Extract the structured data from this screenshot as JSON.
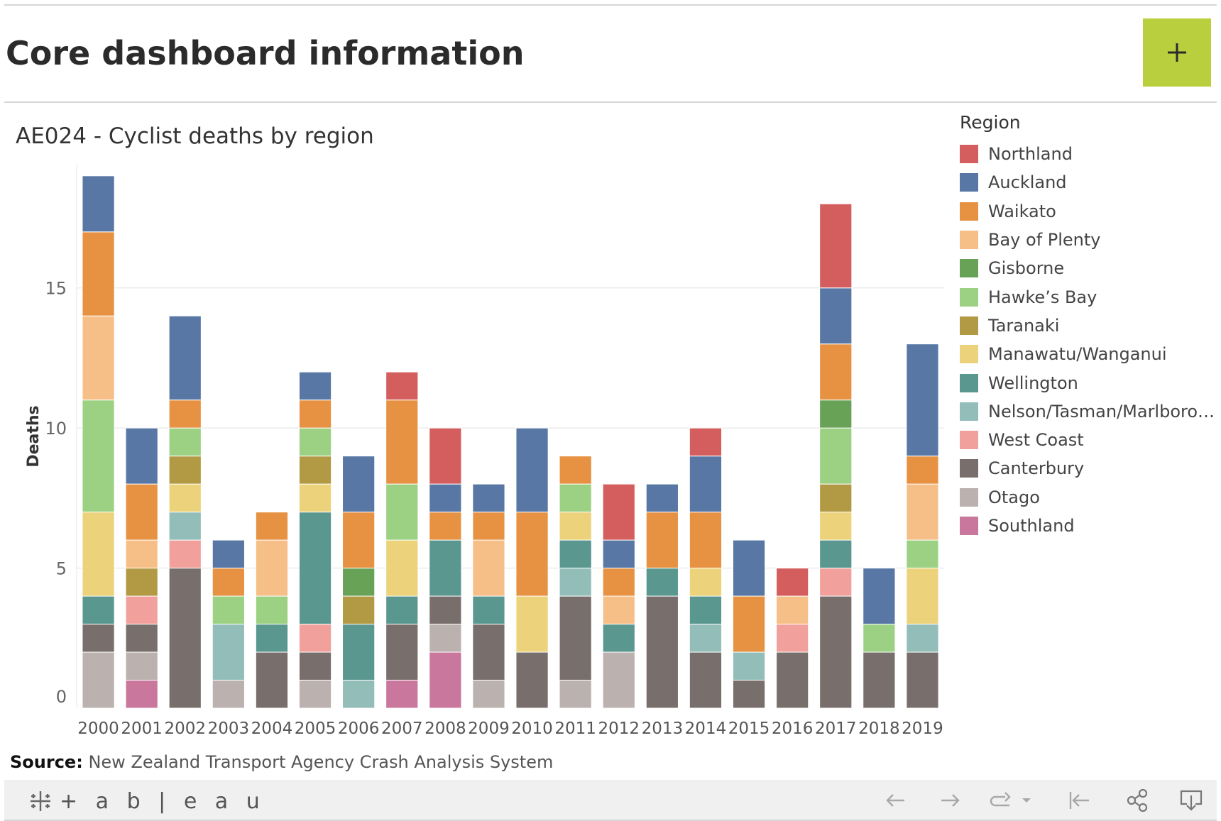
{
  "header": {
    "title": "Core dashboard information",
    "add_label": "+"
  },
  "chart_title": "AE024 - Cyclist deaths by region",
  "legend": {
    "title": "Region",
    "items": [
      "Northland",
      "Auckland",
      "Waikato",
      "Bay of Plenty",
      "Gisborne",
      "Hawke’s Bay",
      "Taranaki",
      "Manawatu/Wanganui",
      "Wellington",
      "Nelson/Tasman/Marlboro…",
      "West Coast",
      "Canterbury",
      "Otago",
      "Southland"
    ]
  },
  "colors": {
    "Northland": "#d45e5e",
    "Auckland": "#5877a5",
    "Waikato": "#e69242",
    "Bay of Plenty": "#f6bf87",
    "Gisborne": "#68a257",
    "Hawke’s Bay": "#9cd183",
    "Taranaki": "#b19a43",
    "Manawatu/Wanganui": "#ecd27a",
    "Wellington": "#5a978f",
    "Nelson/Tasman/Marlboro…": "#92bdb8",
    "West Coast": "#f1a09c",
    "Canterbury": "#786f6d",
    "Otago": "#bbb1ae",
    "Southland": "#c9779d"
  },
  "chart_data": {
    "type": "bar",
    "stacked": true,
    "ylabel": "Deaths",
    "yticks": [
      0,
      5,
      10,
      15
    ],
    "ylim": [
      0,
      19.4
    ],
    "grid": true,
    "legend_position": "right",
    "categories": [
      "2000",
      "2001",
      "2002",
      "2003",
      "2004",
      "2005",
      "2006",
      "2007",
      "2008",
      "2009",
      "2010",
      "2011",
      "2012",
      "2013",
      "2014",
      "2015",
      "2016",
      "2017",
      "2018",
      "2019"
    ],
    "series": [
      {
        "name": "Southland",
        "values": [
          0,
          1,
          0,
          0,
          0,
          0,
          0,
          1,
          2,
          0,
          0,
          0,
          0,
          0,
          0,
          0,
          0,
          0,
          0,
          0
        ]
      },
      {
        "name": "Otago",
        "values": [
          2,
          1,
          0,
          1,
          0,
          1,
          0,
          0,
          1,
          1,
          0,
          1,
          2,
          0,
          0,
          0,
          0,
          0,
          0,
          0
        ]
      },
      {
        "name": "Canterbury",
        "values": [
          1,
          1,
          5,
          0,
          2,
          1,
          0,
          2,
          1,
          2,
          2,
          3,
          0,
          4,
          2,
          1,
          2,
          4,
          2,
          2
        ]
      },
      {
        "name": "West Coast",
        "values": [
          0,
          1,
          1,
          0,
          0,
          1,
          0,
          0,
          0,
          0,
          0,
          0,
          0,
          0,
          0,
          0,
          1,
          1,
          0,
          0
        ]
      },
      {
        "name": "Nelson/Tasman/Marlboro…",
        "values": [
          0,
          0,
          1,
          2,
          0,
          0,
          1,
          0,
          0,
          0,
          0,
          1,
          0,
          0,
          1,
          1,
          0,
          0,
          0,
          1
        ]
      },
      {
        "name": "Wellington",
        "values": [
          1,
          0,
          0,
          0,
          1,
          4,
          2,
          1,
          2,
          1,
          0,
          1,
          1,
          1,
          1,
          0,
          0,
          1,
          0,
          0
        ]
      },
      {
        "name": "Manawatu/Wanganui",
        "values": [
          3,
          0,
          1,
          0,
          0,
          1,
          0,
          2,
          0,
          0,
          2,
          1,
          0,
          0,
          1,
          0,
          0,
          1,
          0,
          2
        ]
      },
      {
        "name": "Taranaki",
        "values": [
          0,
          1,
          1,
          0,
          0,
          1,
          1,
          0,
          0,
          0,
          0,
          0,
          0,
          0,
          0,
          0,
          0,
          1,
          0,
          0
        ]
      },
      {
        "name": "Hawke’s Bay",
        "values": [
          4,
          0,
          1,
          1,
          1,
          1,
          0,
          2,
          0,
          0,
          0,
          1,
          0,
          0,
          0,
          0,
          0,
          2,
          1,
          1
        ]
      },
      {
        "name": "Gisborne",
        "values": [
          0,
          0,
          0,
          0,
          0,
          0,
          1,
          0,
          0,
          0,
          0,
          0,
          0,
          0,
          0,
          0,
          0,
          1,
          0,
          0
        ]
      },
      {
        "name": "Bay of Plenty",
        "values": [
          3,
          1,
          0,
          0,
          2,
          0,
          0,
          0,
          0,
          2,
          0,
          0,
          1,
          0,
          0,
          0,
          1,
          0,
          0,
          2
        ]
      },
      {
        "name": "Waikato",
        "values": [
          3,
          2,
          1,
          1,
          1,
          1,
          2,
          3,
          1,
          1,
          3,
          1,
          1,
          2,
          2,
          2,
          0,
          2,
          0,
          1
        ]
      },
      {
        "name": "Auckland",
        "values": [
          2,
          2,
          3,
          1,
          0,
          1,
          2,
          0,
          1,
          1,
          3,
          0,
          1,
          1,
          2,
          2,
          0,
          2,
          2,
          4
        ]
      },
      {
        "name": "Northland",
        "values": [
          0,
          0,
          0,
          0,
          0,
          0,
          0,
          1,
          2,
          0,
          0,
          0,
          2,
          0,
          1,
          0,
          1,
          3,
          0,
          0
        ]
      }
    ]
  },
  "source": {
    "label": "Source:",
    "text": "New Zealand Transport Agency Crash Analysis System"
  },
  "footer": {
    "logo_text": "+ a b | e a u"
  }
}
